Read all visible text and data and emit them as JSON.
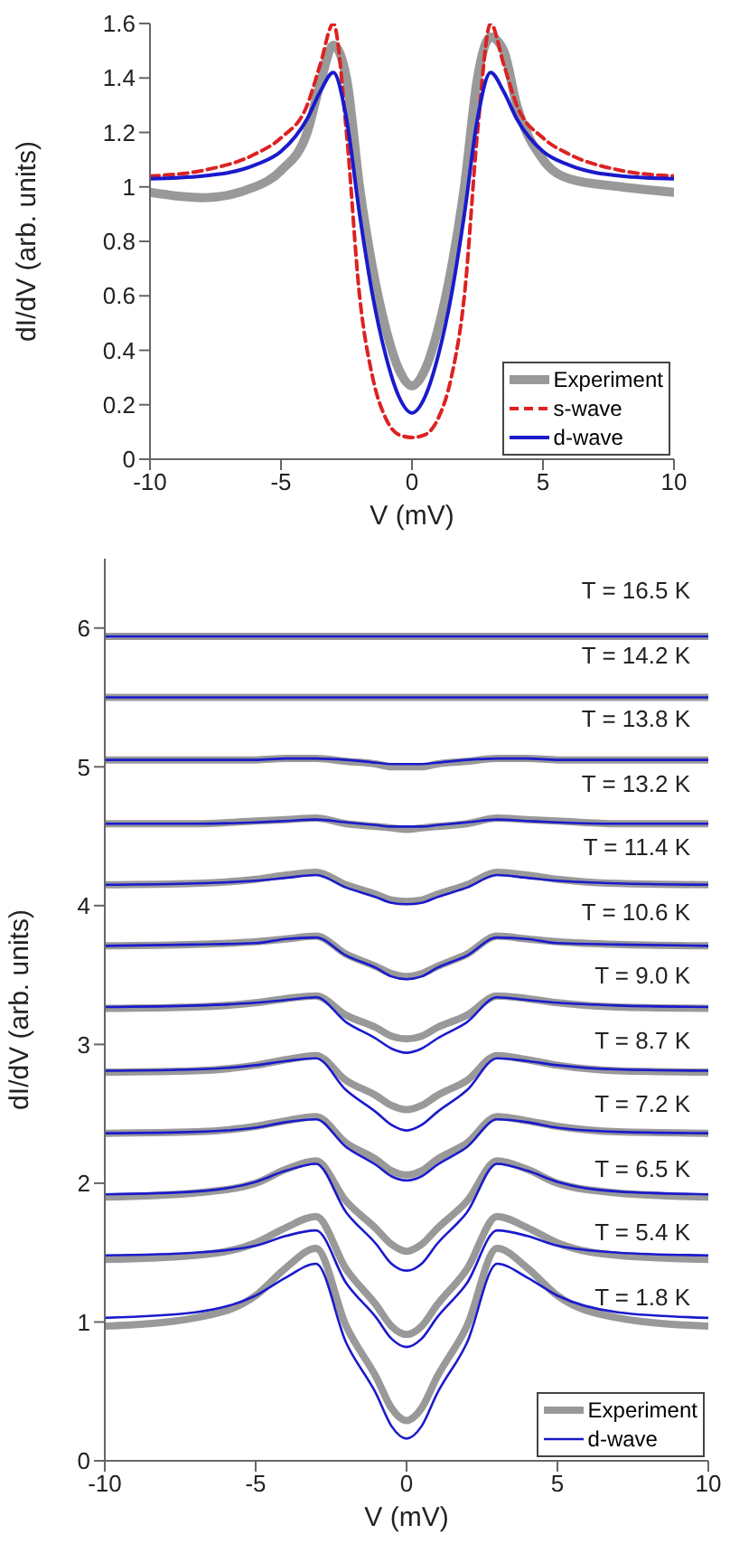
{
  "chart_data": [
    {
      "type": "line",
      "xlabel": "V (mV)",
      "ylabel": "dI/dV (arb. units)",
      "xlim": [
        -10,
        10
      ],
      "xticks": [
        -10,
        -5,
        0,
        5,
        10
      ],
      "ylim": [
        0,
        1.6
      ],
      "yticks": [
        0,
        0.2,
        0.4,
        0.6,
        0.8,
        1,
        1.2,
        1.4,
        1.6
      ],
      "grid": false,
      "legend": "bottom right",
      "marker": "none",
      "x": [
        -10,
        -8,
        -6,
        -5,
        -4,
        -3.5,
        -3,
        -2.5,
        -2,
        -1.5,
        -1,
        -0.5,
        0,
        0.5,
        1,
        1.5,
        2,
        2.5,
        3,
        3.5,
        4,
        5,
        6,
        8,
        10
      ],
      "series": [
        {
          "name": "Experiment",
          "color": "#999999",
          "line_style": "solid",
          "values": [
            0.98,
            0.96,
            1.0,
            1.06,
            1.2,
            1.38,
            1.52,
            1.4,
            1.0,
            0.7,
            0.48,
            0.33,
            0.27,
            0.33,
            0.48,
            0.7,
            1.0,
            1.4,
            1.55,
            1.5,
            1.3,
            1.1,
            1.03,
            1.0,
            0.98
          ]
        },
        {
          "name": "s-wave",
          "color": "#dd2222",
          "line_style": "dashed",
          "values": [
            1.04,
            1.06,
            1.12,
            1.18,
            1.3,
            1.45,
            1.6,
            1.2,
            0.6,
            0.3,
            0.15,
            0.09,
            0.08,
            0.09,
            0.15,
            0.3,
            0.6,
            1.2,
            1.6,
            1.45,
            1.3,
            1.18,
            1.12,
            1.06,
            1.04
          ]
        },
        {
          "name": "d-wave",
          "color": "#1a1acc",
          "line_style": "solid",
          "values": [
            1.03,
            1.04,
            1.08,
            1.13,
            1.25,
            1.35,
            1.42,
            1.25,
            0.9,
            0.6,
            0.38,
            0.23,
            0.17,
            0.23,
            0.38,
            0.6,
            0.9,
            1.25,
            1.42,
            1.35,
            1.25,
            1.13,
            1.08,
            1.04,
            1.03
          ]
        }
      ]
    },
    {
      "type": "line",
      "xlabel": "V (mV)",
      "ylabel": "dI/dV (arb. units)",
      "xlim": [
        -10,
        10
      ],
      "xticks": [
        -10,
        -5,
        0,
        5,
        10
      ],
      "ylim": [
        0,
        6.5
      ],
      "yticks": [
        0,
        1,
        2,
        3,
        4,
        5,
        6
      ],
      "grid": false,
      "legend": "bottom right",
      "marker": "none",
      "x": [
        -10,
        -7,
        -5,
        -4,
        -3,
        -2,
        -1,
        -0.5,
        0,
        0.5,
        1,
        2,
        3,
        4,
        5,
        7,
        10
      ],
      "series": [
        {
          "name": "Experiment",
          "color": "#999999",
          "values": [
            0.97,
            1.03,
            1.19,
            1.39,
            1.53,
            0.97,
            0.6,
            0.38,
            0.29,
            0.38,
            0.6,
            0.97,
            1.53,
            1.39,
            1.19,
            1.03,
            0.97
          ]
        },
        {
          "name": "d-wave",
          "color": "#1a1acc",
          "values": [
            1.03,
            1.07,
            1.19,
            1.32,
            1.42,
            0.85,
            0.48,
            0.25,
            0.16,
            0.25,
            0.48,
            0.85,
            1.42,
            1.32,
            1.19,
            1.07,
            1.03
          ]
        },
        {
          "color": "#999999",
          "values": [
            1.45,
            1.48,
            1.57,
            1.68,
            1.76,
            1.38,
            1.12,
            0.97,
            0.91,
            0.97,
            1.12,
            1.38,
            1.76,
            1.68,
            1.57,
            1.48,
            1.45
          ]
        },
        {
          "color": "#1a1acc",
          "values": [
            1.48,
            1.5,
            1.55,
            1.62,
            1.66,
            1.28,
            1.03,
            0.88,
            0.82,
            0.88,
            1.03,
            1.28,
            1.66,
            1.62,
            1.55,
            1.5,
            1.48
          ]
        },
        {
          "color": "#999999",
          "values": [
            1.9,
            1.93,
            2.0,
            2.1,
            2.16,
            1.87,
            1.67,
            1.56,
            1.51,
            1.56,
            1.67,
            1.87,
            2.16,
            2.1,
            2.0,
            1.93,
            1.9
          ]
        },
        {
          "color": "#1a1acc",
          "values": [
            1.92,
            1.94,
            2.01,
            2.09,
            2.14,
            1.79,
            1.56,
            1.42,
            1.37,
            1.42,
            1.56,
            1.79,
            2.14,
            2.09,
            2.01,
            1.94,
            1.92
          ]
        },
        {
          "color": "#999999",
          "values": [
            2.36,
            2.37,
            2.41,
            2.45,
            2.48,
            2.29,
            2.17,
            2.09,
            2.06,
            2.09,
            2.17,
            2.29,
            2.48,
            2.45,
            2.41,
            2.37,
            2.36
          ]
        },
        {
          "color": "#1a1acc",
          "values": [
            2.36,
            2.37,
            2.4,
            2.44,
            2.46,
            2.26,
            2.13,
            2.05,
            2.02,
            2.05,
            2.13,
            2.26,
            2.46,
            2.44,
            2.4,
            2.37,
            2.36
          ]
        },
        {
          "color": "#999999",
          "values": [
            2.8,
            2.81,
            2.85,
            2.89,
            2.92,
            2.74,
            2.63,
            2.56,
            2.53,
            2.56,
            2.63,
            2.74,
            2.92,
            2.89,
            2.85,
            2.81,
            2.8
          ]
        },
        {
          "color": "#1a1acc",
          "values": [
            2.81,
            2.82,
            2.85,
            2.88,
            2.9,
            2.67,
            2.51,
            2.42,
            2.38,
            2.42,
            2.51,
            2.67,
            2.9,
            2.88,
            2.85,
            2.82,
            2.81
          ]
        },
        {
          "color": "#999999",
          "values": [
            3.26,
            3.27,
            3.3,
            3.33,
            3.35,
            3.21,
            3.12,
            3.06,
            3.04,
            3.06,
            3.12,
            3.21,
            3.35,
            3.33,
            3.3,
            3.27,
            3.26
          ]
        },
        {
          "color": "#1a1acc",
          "values": [
            3.27,
            3.28,
            3.3,
            3.32,
            3.34,
            3.16,
            3.04,
            2.97,
            2.94,
            2.97,
            3.04,
            3.16,
            3.34,
            3.32,
            3.3,
            3.28,
            3.27
          ]
        },
        {
          "color": "#999999",
          "values": [
            3.71,
            3.72,
            3.74,
            3.76,
            3.78,
            3.65,
            3.56,
            3.51,
            3.49,
            3.51,
            3.56,
            3.65,
            3.78,
            3.76,
            3.74,
            3.72,
            3.71
          ]
        },
        {
          "color": "#1a1acc",
          "values": [
            3.71,
            3.72,
            3.73,
            3.76,
            3.77,
            3.64,
            3.55,
            3.49,
            3.47,
            3.49,
            3.55,
            3.64,
            3.77,
            3.76,
            3.73,
            3.72,
            3.71
          ]
        },
        {
          "color": "#999999",
          "values": [
            4.15,
            4.16,
            4.19,
            4.22,
            4.24,
            4.15,
            4.08,
            4.04,
            4.03,
            4.04,
            4.08,
            4.15,
            4.24,
            4.22,
            4.19,
            4.16,
            4.15
          ]
        },
        {
          "color": "#1a1acc",
          "values": [
            4.15,
            4.16,
            4.18,
            4.2,
            4.22,
            4.13,
            4.06,
            4.02,
            4.01,
            4.02,
            4.06,
            4.13,
            4.22,
            4.2,
            4.18,
            4.16,
            4.15
          ]
        },
        {
          "color": "#999999",
          "values": [
            4.59,
            4.59,
            4.61,
            4.62,
            4.63,
            4.59,
            4.57,
            4.56,
            4.55,
            4.56,
            4.57,
            4.59,
            4.63,
            4.62,
            4.61,
            4.59,
            4.59
          ]
        },
        {
          "color": "#1a1acc",
          "values": [
            4.59,
            4.59,
            4.6,
            4.61,
            4.62,
            4.6,
            4.58,
            4.57,
            4.57,
            4.57,
            4.58,
            4.6,
            4.62,
            4.61,
            4.6,
            4.59,
            4.59
          ]
        },
        {
          "color": "#999999",
          "values": [
            5.05,
            5.05,
            5.05,
            5.06,
            5.06,
            5.04,
            5.02,
            5.0,
            5.0,
            5.0,
            5.02,
            5.04,
            5.06,
            5.06,
            5.05,
            5.05,
            5.05
          ]
        },
        {
          "color": "#1a1acc",
          "values": [
            5.05,
            5.05,
            5.05,
            5.06,
            5.06,
            5.05,
            5.03,
            5.02,
            5.02,
            5.02,
            5.03,
            5.05,
            5.06,
            5.06,
            5.05,
            5.05,
            5.05
          ]
        },
        {
          "color": "#999999",
          "values": [
            5.5,
            5.5,
            5.5,
            5.5,
            5.5,
            5.5,
            5.5,
            5.5,
            5.5,
            5.5,
            5.5,
            5.5,
            5.5,
            5.5,
            5.5,
            5.5,
            5.5
          ]
        },
        {
          "color": "#1a1acc",
          "values": [
            5.5,
            5.5,
            5.5,
            5.5,
            5.5,
            5.5,
            5.5,
            5.5,
            5.5,
            5.5,
            5.5,
            5.5,
            5.5,
            5.5,
            5.5,
            5.5,
            5.5
          ]
        },
        {
          "color": "#999999",
          "values": [
            5.94,
            5.94,
            5.94,
            5.94,
            5.94,
            5.94,
            5.94,
            5.94,
            5.94,
            5.94,
            5.94,
            5.94,
            5.94,
            5.94,
            5.94,
            5.94,
            5.94
          ]
        },
        {
          "color": "#1a1acc",
          "values": [
            5.94,
            5.94,
            5.94,
            5.94,
            5.94,
            5.94,
            5.94,
            5.94,
            5.94,
            5.94,
            5.94,
            5.94,
            5.94,
            5.94,
            5.94,
            5.94,
            5.94
          ]
        }
      ],
      "annotations": [
        "T = 16.5 K",
        "T = 14.2 K",
        "T = 13.8 K",
        "T = 13.2 K",
        "T = 11.4 K",
        "T = 10.6 K",
        "T = 9.0 K",
        "T = 8.7 K",
        "T = 7.2 K",
        "T = 6.5 K",
        "T = 5.4 K",
        "T = 1.8 K"
      ]
    }
  ]
}
